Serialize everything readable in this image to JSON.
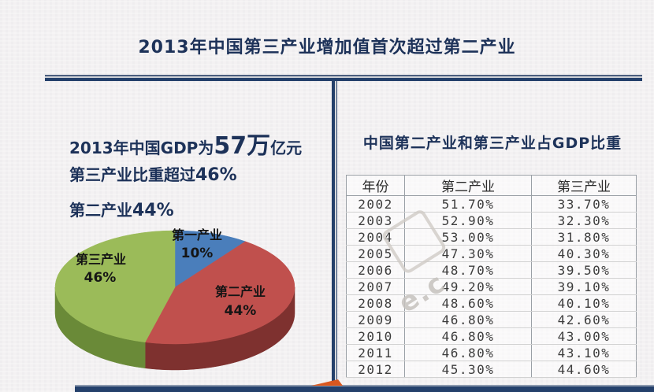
{
  "page": {
    "title": "2013年中国第三产业增加值首次超过第二产业"
  },
  "left_panel": {
    "line1_prefix": "2013年中国GDP为",
    "line1_big": "57万",
    "line1_suffix": "亿元",
    "line2_prefix": "第三产业比重超过",
    "line2_value": "46%",
    "line3_prefix": "第二产业",
    "line3_value": "44%"
  },
  "chart_data": [
    {
      "type": "pie",
      "style": "3d",
      "title": "",
      "labels": [
        "第一产业",
        "第二产业",
        "第三产业"
      ],
      "values": [
        10,
        44,
        46
      ],
      "display_values": [
        "10%",
        "44%",
        "46%"
      ],
      "unit": "%",
      "colors": [
        "#4a7ebb",
        "#c0504d",
        "#9bbb59"
      ],
      "side_colors": [
        "#2f5a8f",
        "#7e312f",
        "#6a8a38"
      ],
      "start_angle_deg": 0,
      "legend_position": "none"
    },
    {
      "type": "table",
      "title": "中国第二产业和第三产业占GDP比重",
      "columns": [
        "年份",
        "第二产业",
        "第三产业"
      ],
      "rows": [
        [
          "2002",
          "51.70%",
          "33.70%"
        ],
        [
          "2003",
          "52.90%",
          "32.30%"
        ],
        [
          "2004",
          "53.00%",
          "31.80%"
        ],
        [
          "2005",
          "47.30%",
          "40.30%"
        ],
        [
          "2006",
          "48.70%",
          "39.50%"
        ],
        [
          "2007",
          "49.20%",
          "39.10%"
        ],
        [
          "2008",
          "48.60%",
          "40.10%"
        ],
        [
          "2009",
          "46.80%",
          "42.60%"
        ],
        [
          "2010",
          "46.80%",
          "43.00%"
        ],
        [
          "2011",
          "46.80%",
          "43.10%"
        ],
        [
          "2012",
          "45.30%",
          "44.60%"
        ]
      ]
    }
  ],
  "watermark": {
    "text": "e.c"
  }
}
